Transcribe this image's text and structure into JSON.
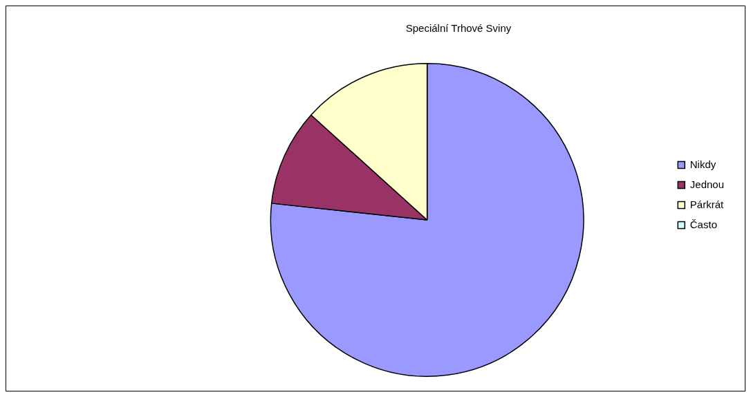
{
  "chart_data": {
    "type": "pie",
    "title": "Speciální Trhové Sviny",
    "categories": [
      "Nikdy",
      "Jednou",
      "Párkrát",
      "Často"
    ],
    "values": [
      76.7,
      10,
      13.3,
      0
    ],
    "colors": [
      "#9999ff",
      "#993366",
      "#ffffcc",
      "#ccffff"
    ],
    "legend": "right"
  }
}
